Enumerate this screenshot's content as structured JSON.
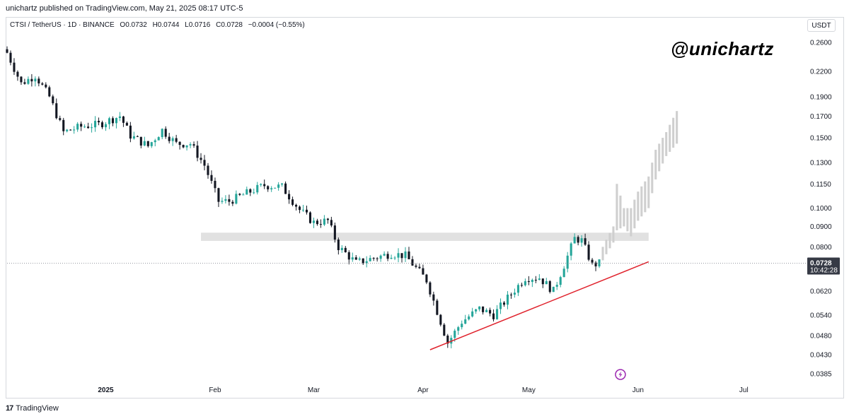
{
  "header": {
    "published": "unichartz published on TradingView.com, May 21, 2025 08:17 UTC-5",
    "symbol": "CTSI / TetherUS · 1D · BINANCE",
    "open": "O0.0732",
    "high": "H0.0744",
    "low": "L0.0716",
    "close": "C0.0728",
    "change": "−0.0004 (−0.55%)",
    "currency": "USDT"
  },
  "watermark": {
    "handle": "@unichartz"
  },
  "footer": {
    "brand": "TradingView",
    "logo": "17"
  },
  "price_tag": {
    "price": "0.0728",
    "countdown": "10:42:28",
    "color": "#363a45"
  },
  "colors": {
    "up": "#26a69a",
    "down": "#131722",
    "trendline": "#e0222c",
    "zone": "#d9d9d9",
    "projection": "#cfcfcf"
  },
  "chart_data": {
    "type": "candlestick",
    "y_scale": "log",
    "ylim": [
      0.0365,
      0.273
    ],
    "yticks": [
      {
        "v": 0.26,
        "label": "0.2600"
      },
      {
        "v": 0.22,
        "label": "0.2200"
      },
      {
        "v": 0.19,
        "label": "0.1900"
      },
      {
        "v": 0.17,
        "label": "0.1700"
      },
      {
        "v": 0.15,
        "label": "0.1500"
      },
      {
        "v": 0.13,
        "label": "0.1300"
      },
      {
        "v": 0.115,
        "label": "0.1150"
      },
      {
        "v": 0.1,
        "label": "0.1000"
      },
      {
        "v": 0.09,
        "label": "0.0900"
      },
      {
        "v": 0.08,
        "label": "0.0800"
      },
      {
        "v": 0.062,
        "label": "0.0620"
      },
      {
        "v": 0.054,
        "label": "0.0540"
      },
      {
        "v": 0.048,
        "label": "0.0480"
      },
      {
        "v": 0.043,
        "label": "0.0430"
      },
      {
        "v": 0.0385,
        "label": "0.0385"
      }
    ],
    "date_range": [
      "2024-12-04",
      "2025-07-18"
    ],
    "xticks": [
      {
        "date": "2025-01-01",
        "label": "2025",
        "bold": true
      },
      {
        "date": "2025-02-01",
        "label": "Feb"
      },
      {
        "date": "2025-03-01",
        "label": "Mar"
      },
      {
        "date": "2025-04-01",
        "label": "Apr"
      },
      {
        "date": "2025-05-01",
        "label": "May"
      },
      {
        "date": "2025-06-01",
        "label": "Jun"
      },
      {
        "date": "2025-07-01",
        "label": "Jul"
      }
    ],
    "last_price": 0.0728,
    "resistance_zone": {
      "start": "2025-01-28",
      "end": "2025-06-04",
      "low": 0.0828,
      "high": 0.0868
    },
    "trendline": {
      "start_date": "2025-04-03",
      "start_price": 0.0442,
      "end_date": "2025-06-04",
      "end_price": 0.0734
    },
    "close_anchors": [
      [
        "2024-12-04",
        0.245
      ],
      [
        "2024-12-08",
        0.205
      ],
      [
        "2024-12-12",
        0.215
      ],
      [
        "2024-12-16",
        0.19
      ],
      [
        "2024-12-20",
        0.155
      ],
      [
        "2024-12-25",
        0.16
      ],
      [
        "2024-12-30",
        0.162
      ],
      [
        "2025-01-05",
        0.17
      ],
      [
        "2025-01-08",
        0.152
      ],
      [
        "2025-01-13",
        0.143
      ],
      [
        "2025-01-17",
        0.157
      ],
      [
        "2025-01-21",
        0.145
      ],
      [
        "2025-01-25",
        0.145
      ],
      [
        "2025-01-29",
        0.128
      ],
      [
        "2025-02-02",
        0.104
      ],
      [
        "2025-02-05",
        0.104
      ],
      [
        "2025-02-10",
        0.109
      ],
      [
        "2025-02-15",
        0.114
      ],
      [
        "2025-02-20",
        0.113
      ],
      [
        "2025-02-25",
        0.099
      ],
      [
        "2025-03-01",
        0.092
      ],
      [
        "2025-03-05",
        0.093
      ],
      [
        "2025-03-08",
        0.08
      ],
      [
        "2025-03-13",
        0.073
      ],
      [
        "2025-03-18",
        0.075
      ],
      [
        "2025-03-23",
        0.077
      ],
      [
        "2025-03-27",
        0.076
      ],
      [
        "2025-04-02",
        0.066
      ],
      [
        "2025-04-06",
        0.052
      ],
      [
        "2025-04-08",
        0.046
      ],
      [
        "2025-04-12",
        0.052
      ],
      [
        "2025-04-17",
        0.056
      ],
      [
        "2025-04-21",
        0.054
      ],
      [
        "2025-04-26",
        0.061
      ],
      [
        "2025-04-30",
        0.067
      ],
      [
        "2025-05-04",
        0.067
      ],
      [
        "2025-05-08",
        0.062
      ],
      [
        "2025-05-11",
        0.072
      ],
      [
        "2025-05-14",
        0.084
      ],
      [
        "2025-05-16",
        0.083
      ],
      [
        "2025-05-19",
        0.072
      ],
      [
        "2025-05-21",
        0.0728
      ]
    ],
    "projection": [
      [
        "2025-05-22",
        0.074,
        0.08
      ],
      [
        "2025-05-25",
        0.082,
        0.09
      ],
      [
        "2025-05-26",
        0.088,
        0.115
      ],
      [
        "2025-05-28",
        0.09,
        0.1
      ],
      [
        "2025-05-30",
        0.085,
        0.1
      ],
      [
        "2025-06-01",
        0.093,
        0.11
      ],
      [
        "2025-06-04",
        0.1,
        0.12
      ],
      [
        "2025-06-06",
        0.118,
        0.14
      ],
      [
        "2025-06-09",
        0.135,
        0.155
      ],
      [
        "2025-06-12",
        0.145,
        0.175
      ]
    ]
  }
}
